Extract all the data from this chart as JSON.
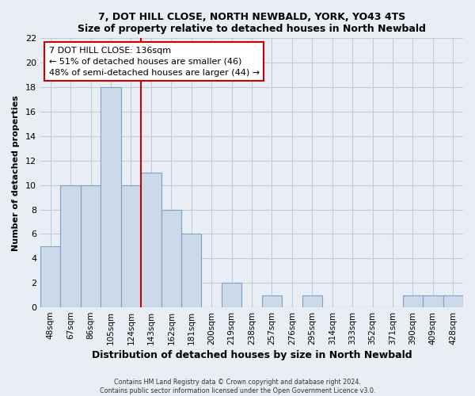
{
  "title": "7, DOT HILL CLOSE, NORTH NEWBALD, YORK, YO43 4TS",
  "subtitle": "Size of property relative to detached houses in North Newbald",
  "xlabel": "Distribution of detached houses by size in North Newbald",
  "ylabel": "Number of detached properties",
  "bar_labels": [
    "48sqm",
    "67sqm",
    "86sqm",
    "105sqm",
    "124sqm",
    "143sqm",
    "162sqm",
    "181sqm",
    "200sqm",
    "219sqm",
    "238sqm",
    "257sqm",
    "276sqm",
    "295sqm",
    "314sqm",
    "333sqm",
    "352sqm",
    "371sqm",
    "390sqm",
    "409sqm",
    "428sqm"
  ],
  "bar_values": [
    5,
    10,
    10,
    18,
    10,
    11,
    8,
    6,
    0,
    2,
    0,
    1,
    0,
    1,
    0,
    0,
    0,
    0,
    1,
    1,
    1
  ],
  "bar_color": "#ccd9e8",
  "bar_edge_color": "#7ba3c8",
  "vline_color": "#cc0000",
  "ylim": [
    0,
    22
  ],
  "yticks": [
    0,
    2,
    4,
    6,
    8,
    10,
    12,
    14,
    16,
    18,
    20,
    22
  ],
  "annotation_title": "7 DOT HILL CLOSE: 136sqm",
  "annotation_line1": "← 51% of detached houses are smaller (46)",
  "annotation_line2": "48% of semi-detached houses are larger (44) →",
  "footer_line1": "Contains HM Land Registry data © Crown copyright and database right 2024.",
  "footer_line2": "Contains public sector information licensed under the Open Government Licence v3.0.",
  "bg_color": "#e8eef4",
  "plot_bg_color": "#e8eef4",
  "grid_color": "#c0ccd8"
}
